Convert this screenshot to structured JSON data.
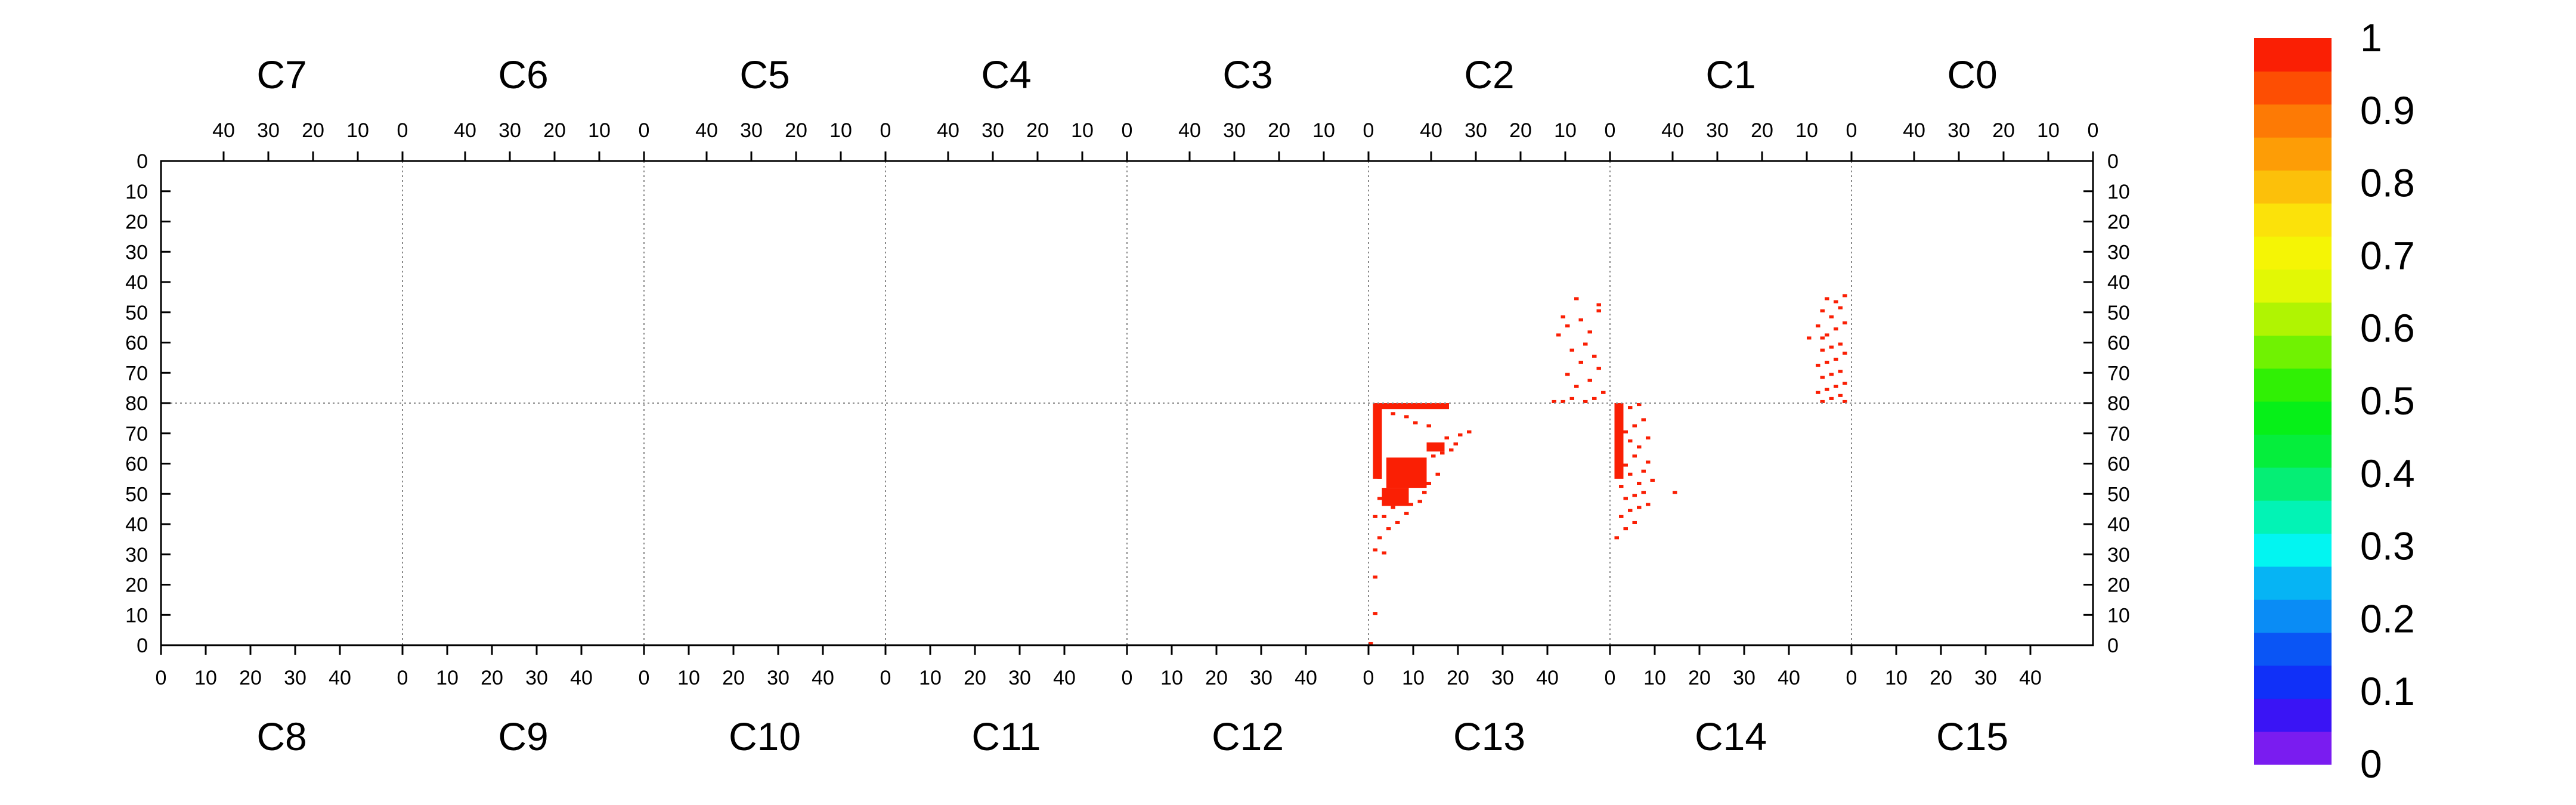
{
  "chart_data": {
    "type": "heatmap",
    "title": "",
    "xlabel": "",
    "ylabel": "",
    "top_chips": [
      "C7",
      "C6",
      "C5",
      "C4",
      "C3",
      "C2",
      "C1",
      "C0"
    ],
    "bottom_chips": [
      "C8",
      "C9",
      "C10",
      "C11",
      "C12",
      "C13",
      "C14",
      "C15"
    ],
    "top_tick_labels": [
      "40",
      "30",
      "20",
      "10",
      "0"
    ],
    "bottom_tick_labels": [
      "0",
      "10",
      "20",
      "30",
      "40"
    ],
    "top_row_tick_labels": [
      "0",
      "10",
      "20",
      "30",
      "40",
      "50",
      "60",
      "70",
      "80"
    ],
    "bottom_row_tick_labels": [
      "80",
      "70",
      "60",
      "50",
      "40",
      "30",
      "20",
      "10",
      "0"
    ],
    "columns_per_chip": 54,
    "rows_per_half": 80,
    "zlim": [
      0,
      1
    ],
    "colorbar": {
      "labels": [
        "1",
        "0.9",
        "0.8",
        "0.7",
        "0.6",
        "0.5",
        "0.4",
        "0.3",
        "0.2",
        "0.1",
        "0"
      ],
      "colors": [
        "#7a1cf0",
        "#3a14f5",
        "#1030f8",
        "#0a55f5",
        "#0a8cf5",
        "#06b4f4",
        "#02f5f1",
        "#02f3b5",
        "#05ee75",
        "#05ee3c",
        "#06f018",
        "#30f005",
        "#70f202",
        "#b0f402",
        "#e2f805",
        "#f5f505",
        "#fbe20a",
        "#fcc00a",
        "#fd9d06",
        "#fd7a05",
        "#fd4e03",
        "#fa1f04"
      ]
    },
    "hit_value": 1,
    "hits": [
      {
        "chip": "C2",
        "col": 2,
        "row": 47
      },
      {
        "chip": "C2",
        "col": 2,
        "row": 49
      },
      {
        "chip": "C2",
        "col": 6,
        "row": 52
      },
      {
        "chip": "C2",
        "col": 7,
        "row": 45
      },
      {
        "chip": "C2",
        "col": 9,
        "row": 54
      },
      {
        "chip": "C2",
        "col": 10,
        "row": 51
      },
      {
        "chip": "C2",
        "col": 4,
        "row": 56
      },
      {
        "chip": "C2",
        "col": 11,
        "row": 57
      },
      {
        "chip": "C2",
        "col": 5,
        "row": 60
      },
      {
        "chip": "C2",
        "col": 8,
        "row": 62
      },
      {
        "chip": "C2",
        "col": 3,
        "row": 64
      },
      {
        "chip": "C2",
        "col": 6,
        "row": 66
      },
      {
        "chip": "C2",
        "col": 2,
        "row": 68
      },
      {
        "chip": "C2",
        "col": 9,
        "row": 70
      },
      {
        "chip": "C2",
        "col": 4,
        "row": 72
      },
      {
        "chip": "C2",
        "col": 7,
        "row": 74
      },
      {
        "chip": "C2",
        "col": 1,
        "row": 76
      },
      {
        "chip": "C2",
        "col": 3,
        "row": 78
      },
      {
        "chip": "C2",
        "col": 5,
        "row": 79
      },
      {
        "chip": "C2",
        "col": 8,
        "row": 78
      },
      {
        "chip": "C2",
        "col": 10,
        "row": 79
      },
      {
        "chip": "C2",
        "col": 12,
        "row": 79
      },
      {
        "chip": "C1",
        "col": 1,
        "row": 44
      },
      {
        "chip": "C1",
        "col": 3,
        "row": 46
      },
      {
        "chip": "C1",
        "col": 5,
        "row": 45
      },
      {
        "chip": "C1",
        "col": 2,
        "row": 48
      },
      {
        "chip": "C1",
        "col": 6,
        "row": 49
      },
      {
        "chip": "C1",
        "col": 4,
        "row": 51
      },
      {
        "chip": "C1",
        "col": 1,
        "row": 53
      },
      {
        "chip": "C1",
        "col": 7,
        "row": 54
      },
      {
        "chip": "C1",
        "col": 3,
        "row": 55
      },
      {
        "chip": "C1",
        "col": 5,
        "row": 57
      },
      {
        "chip": "C1",
        "col": 6,
        "row": 58
      },
      {
        "chip": "C1",
        "col": 9,
        "row": 58
      },
      {
        "chip": "C1",
        "col": 2,
        "row": 60
      },
      {
        "chip": "C1",
        "col": 4,
        "row": 61
      },
      {
        "chip": "C1",
        "col": 6,
        "row": 62
      },
      {
        "chip": "C1",
        "col": 1,
        "row": 63
      },
      {
        "chip": "C1",
        "col": 3,
        "row": 65
      },
      {
        "chip": "C1",
        "col": 5,
        "row": 66
      },
      {
        "chip": "C1",
        "col": 7,
        "row": 67
      },
      {
        "chip": "C1",
        "col": 2,
        "row": 69
      },
      {
        "chip": "C1",
        "col": 4,
        "row": 70
      },
      {
        "chip": "C1",
        "col": 6,
        "row": 71
      },
      {
        "chip": "C1",
        "col": 1,
        "row": 73
      },
      {
        "chip": "C1",
        "col": 3,
        "row": 74
      },
      {
        "chip": "C1",
        "col": 5,
        "row": 75
      },
      {
        "chip": "C1",
        "col": 7,
        "row": 76
      },
      {
        "chip": "C1",
        "col": 2,
        "row": 77
      },
      {
        "chip": "C1",
        "col": 4,
        "row": 78
      },
      {
        "chip": "C1",
        "col": 6,
        "row": 79
      },
      {
        "chip": "C1",
        "col": 1,
        "row": 79
      },
      {
        "chip": "C13",
        "col": 1,
        "row": 10
      },
      {
        "chip": "C13",
        "col": 1,
        "row": 22
      },
      {
        "chip": "C13",
        "col": 1,
        "row": 31
      },
      {
        "chip": "C13",
        "col": 3,
        "row": 30
      },
      {
        "chip": "C13",
        "col": 2,
        "row": 35
      },
      {
        "chip": "C13",
        "col": 4,
        "row": 38
      },
      {
        "chip": "C13",
        "col": 6,
        "row": 40
      },
      {
        "chip": "C13",
        "col": 3,
        "row": 42
      },
      {
        "chip": "C13",
        "col": 8,
        "row": 43
      },
      {
        "chip": "C13",
        "col": 5,
        "row": 45
      },
      {
        "chip": "C13",
        "col": 9,
        "row": 46
      },
      {
        "chip": "C13",
        "col": 11,
        "row": 47
      },
      {
        "chip": "C13",
        "col": 12,
        "row": 50
      },
      {
        "chip": "C13",
        "col": 13,
        "row": 53
      },
      {
        "chip": "C13",
        "col": 15,
        "row": 56
      },
      {
        "chip": "C13",
        "col": 14,
        "row": 62
      },
      {
        "chip": "C13",
        "col": 16,
        "row": 63
      },
      {
        "chip": "C13",
        "col": 18,
        "row": 64
      },
      {
        "chip": "C13",
        "col": 19,
        "row": 66
      },
      {
        "chip": "C13",
        "col": 17,
        "row": 68
      },
      {
        "chip": "C13",
        "col": 20,
        "row": 69
      },
      {
        "chip": "C13",
        "col": 22,
        "row": 70
      },
      {
        "chip": "C13",
        "col": 13,
        "row": 72
      },
      {
        "chip": "C13",
        "col": 10,
        "row": 73
      },
      {
        "chip": "C13",
        "col": 8,
        "row": 75
      },
      {
        "chip": "C13",
        "col": 5,
        "row": 76
      },
      {
        "chip": "C13",
        "col": 2,
        "row": 70
      },
      {
        "chip": "C13",
        "col": 2,
        "row": 62
      },
      {
        "chip": "C13",
        "col": 2,
        "row": 55
      },
      {
        "chip": "C13",
        "col": 2,
        "row": 48
      },
      {
        "chip": "C13",
        "col": 1,
        "row": 42
      },
      {
        "chip": "C13",
        "col": 0,
        "row": 0
      },
      {
        "chip": "C14",
        "col": 1,
        "row": 35
      },
      {
        "chip": "C14",
        "col": 3,
        "row": 38
      },
      {
        "chip": "C14",
        "col": 5,
        "row": 40
      },
      {
        "chip": "C14",
        "col": 2,
        "row": 42
      },
      {
        "chip": "C14",
        "col": 4,
        "row": 44
      },
      {
        "chip": "C14",
        "col": 6,
        "row": 45
      },
      {
        "chip": "C14",
        "col": 8,
        "row": 46
      },
      {
        "chip": "C14",
        "col": 3,
        "row": 48
      },
      {
        "chip": "C14",
        "col": 5,
        "row": 49
      },
      {
        "chip": "C14",
        "col": 7,
        "row": 50
      },
      {
        "chip": "C14",
        "col": 14,
        "row": 50
      },
      {
        "chip": "C14",
        "col": 2,
        "row": 52
      },
      {
        "chip": "C14",
        "col": 6,
        "row": 53
      },
      {
        "chip": "C14",
        "col": 9,
        "row": 54
      },
      {
        "chip": "C14",
        "col": 4,
        "row": 56
      },
      {
        "chip": "C14",
        "col": 7,
        "row": 57
      },
      {
        "chip": "C14",
        "col": 3,
        "row": 59
      },
      {
        "chip": "C14",
        "col": 8,
        "row": 60
      },
      {
        "chip": "C14",
        "col": 5,
        "row": 62
      },
      {
        "chip": "C14",
        "col": 2,
        "row": 64
      },
      {
        "chip": "C14",
        "col": 6,
        "row": 65
      },
      {
        "chip": "C14",
        "col": 4,
        "row": 67
      },
      {
        "chip": "C14",
        "col": 8,
        "row": 68
      },
      {
        "chip": "C14",
        "col": 3,
        "row": 70
      },
      {
        "chip": "C14",
        "col": 5,
        "row": 72
      },
      {
        "chip": "C14",
        "col": 7,
        "row": 74
      },
      {
        "chip": "C14",
        "col": 2,
        "row": 76
      },
      {
        "chip": "C14",
        "col": 4,
        "row": 78
      },
      {
        "chip": "C14",
        "col": 6,
        "row": 79
      }
    ],
    "hit_rects": [
      {
        "chip": "C13",
        "col0": 1,
        "col1": 18,
        "row0": 78,
        "row1": 80
      },
      {
        "chip": "C13",
        "col0": 1,
        "col1": 3,
        "row0": 55,
        "row1": 80
      },
      {
        "chip": "C13",
        "col0": 4,
        "col1": 13,
        "row0": 52,
        "row1": 62
      },
      {
        "chip": "C13",
        "col0": 3,
        "col1": 9,
        "row0": 46,
        "row1": 52
      },
      {
        "chip": "C13",
        "col0": 13,
        "col1": 17,
        "row0": 64,
        "row1": 67
      },
      {
        "chip": "C14",
        "col0": 1,
        "col1": 3,
        "row0": 55,
        "row1": 80
      }
    ]
  }
}
